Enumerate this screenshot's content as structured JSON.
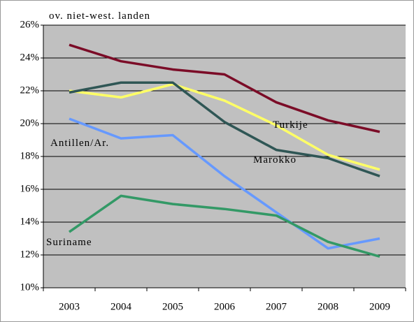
{
  "chart_data": {
    "type": "line",
    "categories": [
      "2003",
      "2004",
      "2005",
      "2006",
      "2007",
      "2008",
      "2009"
    ],
    "series": [
      {
        "name": "ov. niet-west. landen",
        "color": "#7b0c27",
        "values": [
          24.8,
          23.8,
          23.3,
          23.0,
          21.3,
          20.2,
          19.5
        ]
      },
      {
        "name": "Turkije",
        "color": "#ffff66",
        "values": [
          22.0,
          21.6,
          22.4,
          21.4,
          19.9,
          18.1,
          17.2
        ]
      },
      {
        "name": "Marokko",
        "color": "#2f5655",
        "values": [
          21.9,
          22.5,
          22.5,
          20.1,
          18.4,
          17.9,
          16.8
        ]
      },
      {
        "name": "Antillen/Ar.",
        "color": "#6699ff",
        "values": [
          20.3,
          19.1,
          19.3,
          16.8,
          14.6,
          12.4,
          13.0
        ]
      },
      {
        "name": "Suriname",
        "color": "#339966",
        "values": [
          13.4,
          15.6,
          15.1,
          14.8,
          14.4,
          12.8,
          11.9
        ]
      }
    ],
    "ylim": [
      10,
      26
    ],
    "yticks": [
      {
        "value": 10,
        "label": "10%"
      },
      {
        "value": 12,
        "label": "12%"
      },
      {
        "value": 14,
        "label": "14%"
      },
      {
        "value": 16,
        "label": "16%"
      },
      {
        "value": 18,
        "label": "18%"
      },
      {
        "value": 20,
        "label": "20%"
      },
      {
        "value": 22,
        "label": "22%"
      },
      {
        "value": 24,
        "label": "24%"
      },
      {
        "value": 26,
        "label": "26%"
      }
    ],
    "grid": true
  }
}
